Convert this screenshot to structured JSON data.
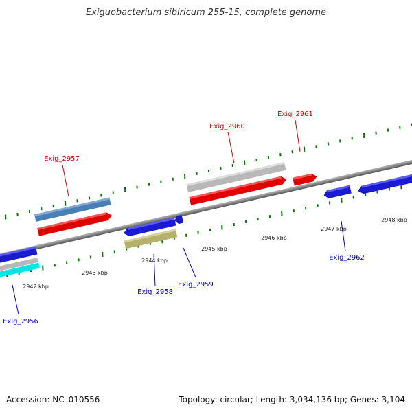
{
  "title": "Exiguobacterium sibiricum 255-15, complete genome",
  "footer": {
    "accession": "Accession: NC_010556",
    "topology": "Topology: circular; Length: 3,034,136 bp; Genes: 3,104"
  },
  "colors": {
    "forward_label": "#cc0000",
    "reverse_label": "#0000cc",
    "tick": "#007700",
    "backbone": "#777777"
  },
  "scale_labels": [
    "2942 kbp",
    "2943 kbp",
    "2944 kbp",
    "2945 kbp",
    "2946 kbp",
    "2947 kbp",
    "2948 kbp"
  ],
  "gene_labels": {
    "exig_2956": "Exig_2956",
    "exig_2957": "Exig_2957",
    "exig_2958": "Exig_2958",
    "exig_2959": "Exig_2959",
    "exig_2960": "Exig_2960",
    "exig_2961": "Exig_2961",
    "exig_2962": "Exig_2962"
  }
}
